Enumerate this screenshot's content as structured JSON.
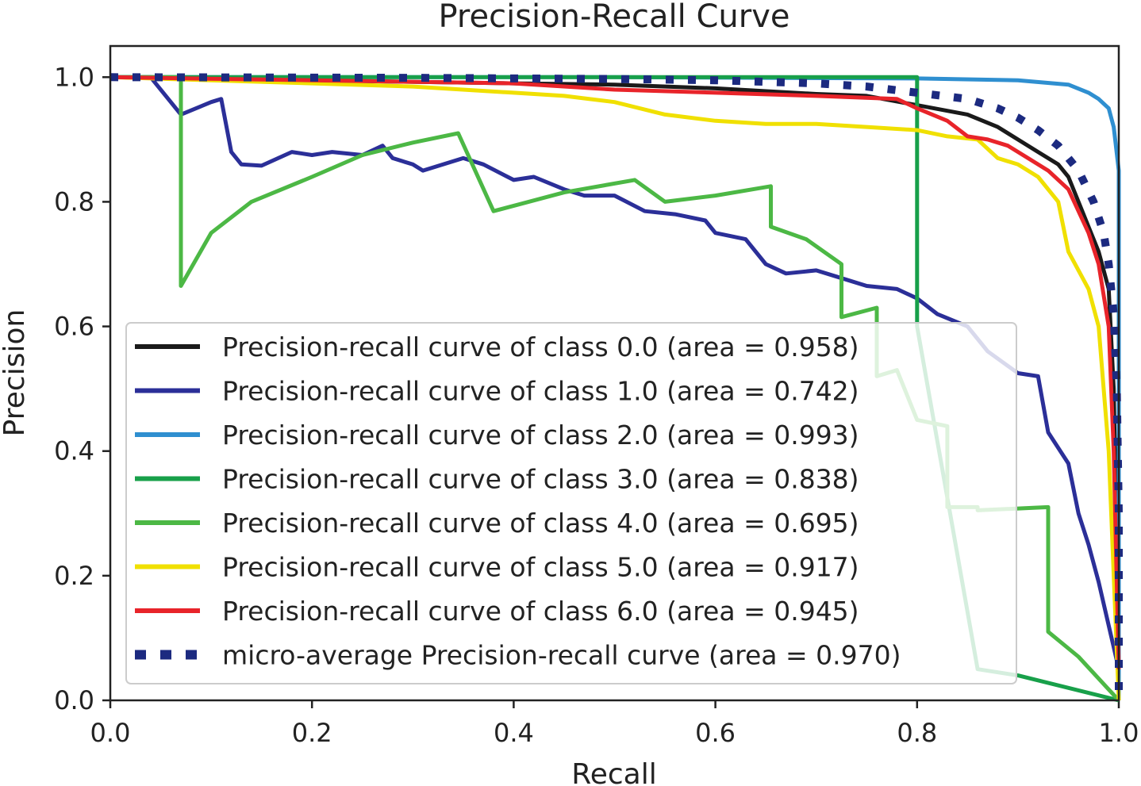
{
  "chart_data": {
    "type": "line",
    "title": "Precision-Recall Curve",
    "xlabel": "Recall",
    "ylabel": "Precision",
    "xlim": [
      0,
      1
    ],
    "ylim": [
      0,
      1.05
    ],
    "xticks": [
      "0.0",
      "0.2",
      "0.4",
      "0.6",
      "0.8",
      "1.0"
    ],
    "yticks": [
      "0.0",
      "0.2",
      "0.4",
      "0.6",
      "0.8",
      "1.0"
    ],
    "legend_position": "lower-left",
    "series": [
      {
        "name": "Precision-recall curve of class 0.0 (area = 0.958)",
        "color": "#1a1a1a",
        "style": "solid",
        "points": [
          [
            0,
            1.0
          ],
          [
            0.2,
            0.995
          ],
          [
            0.4,
            0.99
          ],
          [
            0.5,
            0.988
          ],
          [
            0.6,
            0.982
          ],
          [
            0.7,
            0.973
          ],
          [
            0.75,
            0.97
          ],
          [
            0.8,
            0.955
          ],
          [
            0.85,
            0.94
          ],
          [
            0.88,
            0.92
          ],
          [
            0.9,
            0.9
          ],
          [
            0.92,
            0.88
          ],
          [
            0.94,
            0.86
          ],
          [
            0.95,
            0.84
          ],
          [
            0.96,
            0.8
          ],
          [
            0.97,
            0.76
          ],
          [
            0.98,
            0.72
          ],
          [
            0.99,
            0.66
          ],
          [
            0.995,
            0.5
          ],
          [
            1.0,
            0.05
          ]
        ]
      },
      {
        "name": "Precision-recall curve of class 1.0 (area = 0.742)",
        "color": "#2b2f98",
        "style": "solid",
        "points": [
          [
            0,
            1.0
          ],
          [
            0.04,
            1.0
          ],
          [
            0.07,
            0.94
          ],
          [
            0.1,
            0.96
          ],
          [
            0.11,
            0.965
          ],
          [
            0.12,
            0.88
          ],
          [
            0.13,
            0.86
          ],
          [
            0.15,
            0.858
          ],
          [
            0.18,
            0.88
          ],
          [
            0.2,
            0.875
          ],
          [
            0.22,
            0.88
          ],
          [
            0.25,
            0.875
          ],
          [
            0.27,
            0.89
          ],
          [
            0.28,
            0.87
          ],
          [
            0.3,
            0.86
          ],
          [
            0.31,
            0.85
          ],
          [
            0.35,
            0.87
          ],
          [
            0.37,
            0.86
          ],
          [
            0.4,
            0.835
          ],
          [
            0.42,
            0.84
          ],
          [
            0.45,
            0.82
          ],
          [
            0.47,
            0.81
          ],
          [
            0.5,
            0.81
          ],
          [
            0.53,
            0.785
          ],
          [
            0.56,
            0.78
          ],
          [
            0.59,
            0.77
          ],
          [
            0.6,
            0.75
          ],
          [
            0.63,
            0.74
          ],
          [
            0.65,
            0.7
          ],
          [
            0.67,
            0.685
          ],
          [
            0.7,
            0.69
          ],
          [
            0.72,
            0.68
          ],
          [
            0.75,
            0.665
          ],
          [
            0.78,
            0.66
          ],
          [
            0.8,
            0.645
          ],
          [
            0.82,
            0.62
          ],
          [
            0.85,
            0.6
          ],
          [
            0.87,
            0.56
          ],
          [
            0.9,
            0.525
          ],
          [
            0.92,
            0.52
          ],
          [
            0.93,
            0.43
          ],
          [
            0.95,
            0.38
          ],
          [
            0.96,
            0.3
          ],
          [
            0.97,
            0.25
          ],
          [
            0.98,
            0.19
          ],
          [
            0.99,
            0.12
          ],
          [
            1.0,
            0.05
          ]
        ]
      },
      {
        "name": "Precision-recall curve of class 2.0 (area = 0.993)",
        "color": "#2f8fd0",
        "style": "solid",
        "points": [
          [
            0,
            1.0
          ],
          [
            0.5,
            1.0
          ],
          [
            0.8,
            0.998
          ],
          [
            0.9,
            0.995
          ],
          [
            0.95,
            0.988
          ],
          [
            0.97,
            0.975
          ],
          [
            0.98,
            0.965
          ],
          [
            0.99,
            0.95
          ],
          [
            0.995,
            0.92
          ],
          [
            1.0,
            0.85
          ],
          [
            1.0,
            0.0
          ]
        ]
      },
      {
        "name": "Precision-recall curve of class 3.0 (area = 0.838)",
        "color": "#18a04a",
        "style": "solid",
        "points": [
          [
            0,
            1.0
          ],
          [
            0.8,
            1.0
          ],
          [
            0.8,
            0.6
          ],
          [
            0.86,
            0.05
          ],
          [
            0.9,
            0.04
          ],
          [
            1.0,
            0.0
          ]
        ]
      },
      {
        "name": "Precision-recall curve of class 4.0 (area = 0.695)",
        "color": "#4cb845",
        "style": "solid",
        "points": [
          [
            0,
            1.0
          ],
          [
            0.07,
            1.0
          ],
          [
            0.07,
            0.665
          ],
          [
            0.1,
            0.75
          ],
          [
            0.14,
            0.8
          ],
          [
            0.2,
            0.84
          ],
          [
            0.25,
            0.875
          ],
          [
            0.3,
            0.895
          ],
          [
            0.345,
            0.91
          ],
          [
            0.38,
            0.785
          ],
          [
            0.45,
            0.815
          ],
          [
            0.52,
            0.835
          ],
          [
            0.55,
            0.8
          ],
          [
            0.6,
            0.81
          ],
          [
            0.655,
            0.825
          ],
          [
            0.655,
            0.76
          ],
          [
            0.69,
            0.74
          ],
          [
            0.725,
            0.7
          ],
          [
            0.725,
            0.615
          ],
          [
            0.76,
            0.63
          ],
          [
            0.76,
            0.52
          ],
          [
            0.78,
            0.53
          ],
          [
            0.8,
            0.45
          ],
          [
            0.83,
            0.44
          ],
          [
            0.83,
            0.31
          ],
          [
            0.86,
            0.31
          ],
          [
            0.86,
            0.305
          ],
          [
            0.93,
            0.31
          ],
          [
            0.93,
            0.11
          ],
          [
            0.96,
            0.07
          ],
          [
            1.0,
            0.0
          ]
        ]
      },
      {
        "name": "Precision-recall curve of class 5.0 (area = 0.917)",
        "color": "#f0e000",
        "style": "solid",
        "points": [
          [
            0,
            1.0
          ],
          [
            0.1,
            0.995
          ],
          [
            0.2,
            0.99
          ],
          [
            0.3,
            0.985
          ],
          [
            0.4,
            0.975
          ],
          [
            0.45,
            0.97
          ],
          [
            0.5,
            0.96
          ],
          [
            0.55,
            0.94
          ],
          [
            0.6,
            0.93
          ],
          [
            0.65,
            0.925
          ],
          [
            0.7,
            0.925
          ],
          [
            0.75,
            0.92
          ],
          [
            0.8,
            0.915
          ],
          [
            0.83,
            0.905
          ],
          [
            0.86,
            0.9
          ],
          [
            0.88,
            0.87
          ],
          [
            0.9,
            0.86
          ],
          [
            0.92,
            0.84
          ],
          [
            0.94,
            0.8
          ],
          [
            0.95,
            0.72
          ],
          [
            0.97,
            0.66
          ],
          [
            0.98,
            0.6
          ],
          [
            0.99,
            0.4
          ],
          [
            1.0,
            0.0
          ]
        ]
      },
      {
        "name": "Precision-recall curve of class 6.0 (area = 0.945)",
        "color": "#e8242a",
        "style": "solid",
        "points": [
          [
            0,
            1.0
          ],
          [
            0.2,
            0.995
          ],
          [
            0.4,
            0.99
          ],
          [
            0.5,
            0.98
          ],
          [
            0.6,
            0.975
          ],
          [
            0.7,
            0.97
          ],
          [
            0.78,
            0.965
          ],
          [
            0.8,
            0.95
          ],
          [
            0.83,
            0.93
          ],
          [
            0.85,
            0.905
          ],
          [
            0.87,
            0.9
          ],
          [
            0.89,
            0.89
          ],
          [
            0.91,
            0.87
          ],
          [
            0.93,
            0.85
          ],
          [
            0.95,
            0.82
          ],
          [
            0.97,
            0.75
          ],
          [
            0.98,
            0.7
          ],
          [
            0.99,
            0.6
          ],
          [
            0.995,
            0.4
          ],
          [
            1.0,
            0.05
          ]
        ]
      },
      {
        "name": "micro-average Precision-recall curve (area = 0.970)",
        "color": "#1c2a80",
        "style": "dotted",
        "points": [
          [
            0,
            1.0
          ],
          [
            0.3,
            0.999
          ],
          [
            0.5,
            0.997
          ],
          [
            0.6,
            0.995
          ],
          [
            0.7,
            0.99
          ],
          [
            0.75,
            0.985
          ],
          [
            0.8,
            0.975
          ],
          [
            0.85,
            0.965
          ],
          [
            0.88,
            0.95
          ],
          [
            0.9,
            0.935
          ],
          [
            0.92,
            0.915
          ],
          [
            0.94,
            0.89
          ],
          [
            0.96,
            0.85
          ],
          [
            0.975,
            0.8
          ],
          [
            0.985,
            0.75
          ],
          [
            0.99,
            0.7
          ],
          [
            0.995,
            0.62
          ],
          [
            0.998,
            0.5
          ],
          [
            1.0,
            0.3
          ],
          [
            1.0,
            0.0
          ]
        ]
      }
    ]
  }
}
